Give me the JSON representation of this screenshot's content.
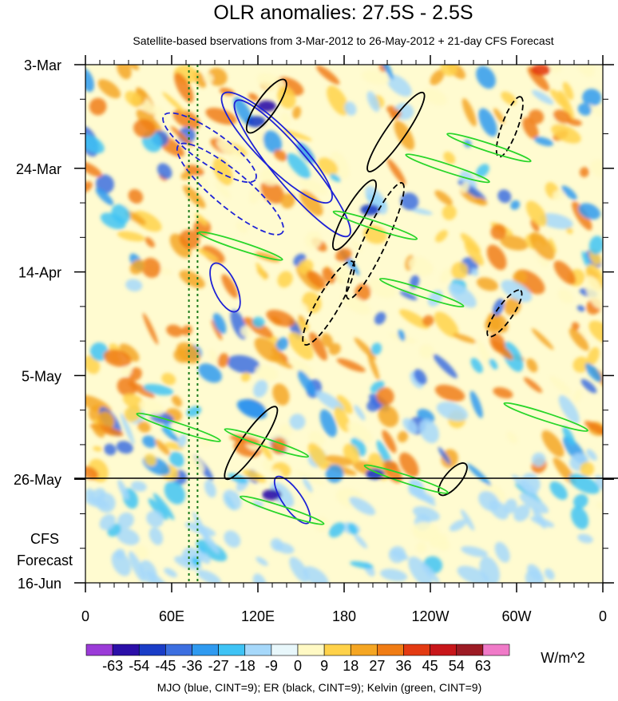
{
  "chart_data": {
    "type": "heatmap",
    "title": "OLR anomalies: 27.5S - 2.5S",
    "subtitle": "Satellite-based bservations from 3-Mar-2012 to 26-May-2012 + 21-day CFS Forecast",
    "x_ticks": [
      "0",
      "60E",
      "120E",
      "180",
      "120W",
      "60W",
      "0"
    ],
    "x_tick_values": [
      0,
      60,
      120,
      180,
      240,
      300,
      360
    ],
    "y_ticks": [
      "3-Mar",
      "24-Mar",
      "14-Apr",
      "5-May",
      "26-May",
      "16-Jun"
    ],
    "forecast_label": [
      "CFS",
      "Forecast"
    ],
    "forecast_start": "26-May",
    "colorbar": {
      "labels": [
        "-63",
        "-54",
        "-45",
        "-36",
        "-27",
        "-18",
        "-9",
        "0",
        "9",
        "18",
        "27",
        "36",
        "45",
        "54",
        "63"
      ],
      "colors": [
        "#9b3bd8",
        "#2b0fa8",
        "#1a3dc7",
        "#3c6fe0",
        "#2f9af0",
        "#3ec3f5",
        "#a6d8fa",
        "#e8f7fb",
        "#fff9c4",
        "#ffd24a",
        "#f5a623",
        "#f07c14",
        "#e33a12",
        "#c8161a",
        "#9c1b24",
        "#f07ac8"
      ],
      "units": "W/m^2"
    },
    "footer": "MJO (blue, CINT=9); ER (black, CINT=9); Kelvin (green, CINT=9)",
    "contour_colors": {
      "mjo": "#1f23d6",
      "er": "#000000",
      "kelvin": "#2ad62a",
      "reference_line": "#1a7a1a"
    },
    "reference_lines_lon": [
      72,
      78
    ]
  }
}
